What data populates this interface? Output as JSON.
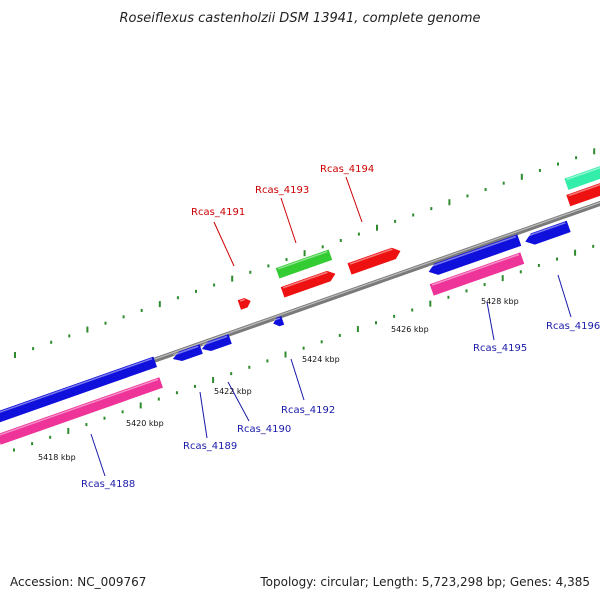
{
  "title": "Roseiflexus castenholzii DSM 13941, complete genome",
  "footer": {
    "accession": "Accession: NC_009767",
    "summary": "Topology: circular; Length: 5,723,298 bp; Genes: 4,385"
  },
  "colors": {
    "backbone": "#888888",
    "tick": "#2e8b2e",
    "label_upper": "#cc0000",
    "label_lower": "#1a1aaa",
    "blue": "#1010dd",
    "red": "#ee1111",
    "pink": "#ee3399",
    "green": "#33cc33",
    "teal": "#33eeaa"
  },
  "ticks": [
    "5418 kbp",
    "5420 kbp",
    "5422 kbp",
    "5424 kbp",
    "5426 kbp",
    "5428 kbp"
  ],
  "genes": [
    {
      "label": "Rcas_4188",
      "side": "lower"
    },
    {
      "label": "Rcas_4189",
      "side": "lower"
    },
    {
      "label": "Rcas_4190",
      "side": "lower"
    },
    {
      "label": "Rcas_4191",
      "side": "upper"
    },
    {
      "label": "Rcas_4192",
      "side": "lower"
    },
    {
      "label": "Rcas_4193",
      "side": "upper"
    },
    {
      "label": "Rcas_4194",
      "side": "upper"
    },
    {
      "label": "Rcas_4195",
      "side": "lower"
    },
    {
      "label": "Rcas_4196",
      "side": "lower"
    }
  ]
}
